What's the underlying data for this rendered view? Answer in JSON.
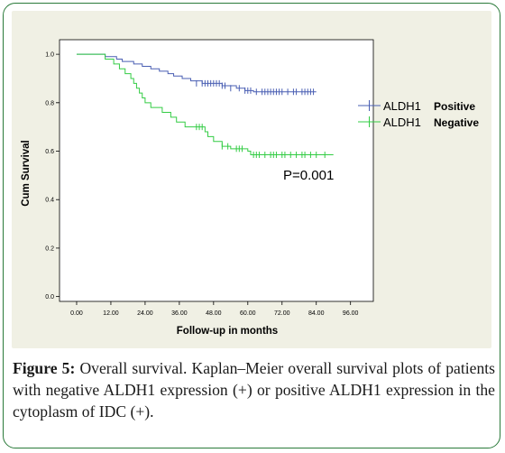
{
  "caption": {
    "label": "Figure 5:",
    "text": " Overall survival. Kaplan–Meier overall survival plots of patients with negative ALDH1 expression (+) or positive ALDH1 expression in the cytoplasm of IDC (+)."
  },
  "chart_data": {
    "type": "line",
    "title": "",
    "xlabel": "Follow-up in months",
    "ylabel": "Cum Survival",
    "xlim": [
      -6,
      104
    ],
    "ylim": [
      -0.02,
      1.06
    ],
    "x_ticks": [
      0,
      12,
      24,
      36,
      48,
      60,
      72,
      84,
      96
    ],
    "x_tick_labels": [
      "0.00",
      "12.00",
      "24.00",
      "36.00",
      "48.00",
      "60.00",
      "72.00",
      "84.00",
      "96.00"
    ],
    "y_ticks": [
      0,
      0.2,
      0.4,
      0.6,
      0.8,
      1.0
    ],
    "y_tick_labels": [
      "0.0",
      "0.2",
      "0.4",
      "0.6",
      "0.8",
      "1.0"
    ],
    "annotation": "P=0.001",
    "legend_position": "right",
    "series": [
      {
        "name": "ALDH1",
        "legend_suffix": "Positive",
        "color": "#4a5fb3",
        "steps": [
          [
            0,
            1.0
          ],
          [
            10,
            0.99
          ],
          [
            14,
            0.98
          ],
          [
            16,
            0.97
          ],
          [
            20,
            0.96
          ],
          [
            23,
            0.95
          ],
          [
            26,
            0.94
          ],
          [
            29,
            0.93
          ],
          [
            32,
            0.92
          ],
          [
            34,
            0.91
          ],
          [
            37,
            0.9
          ],
          [
            40,
            0.89
          ],
          [
            44,
            0.88
          ],
          [
            51,
            0.87
          ],
          [
            56,
            0.86
          ],
          [
            59,
            0.85
          ],
          [
            62,
            0.845
          ],
          [
            84,
            0.845
          ]
        ],
        "censored": [
          [
            42,
            0.88
          ],
          [
            44,
            0.88
          ],
          [
            45,
            0.88
          ],
          [
            46,
            0.88
          ],
          [
            47,
            0.88
          ],
          [
            48,
            0.88
          ],
          [
            49,
            0.88
          ],
          [
            50,
            0.88
          ],
          [
            51,
            0.87
          ],
          [
            52,
            0.87
          ],
          [
            54,
            0.86
          ],
          [
            57,
            0.86
          ],
          [
            59,
            0.85
          ],
          [
            60,
            0.85
          ],
          [
            61,
            0.85
          ],
          [
            63,
            0.845
          ],
          [
            65,
            0.845
          ],
          [
            66,
            0.845
          ],
          [
            67,
            0.845
          ],
          [
            68,
            0.845
          ],
          [
            69,
            0.845
          ],
          [
            70,
            0.845
          ],
          [
            71,
            0.845
          ],
          [
            72,
            0.845
          ],
          [
            74,
            0.845
          ],
          [
            76,
            0.845
          ],
          [
            77,
            0.845
          ],
          [
            79,
            0.845
          ],
          [
            80,
            0.845
          ],
          [
            81,
            0.845
          ],
          [
            82,
            0.845
          ],
          [
            83,
            0.845
          ]
        ]
      },
      {
        "name": "ALDH1",
        "legend_suffix": "Negative",
        "color": "#33cc44",
        "steps": [
          [
            0,
            1.0
          ],
          [
            10,
            0.98
          ],
          [
            13,
            0.96
          ],
          [
            15,
            0.94
          ],
          [
            17,
            0.92
          ],
          [
            19,
            0.9
          ],
          [
            20,
            0.88
          ],
          [
            21,
            0.86
          ],
          [
            22,
            0.84
          ],
          [
            23,
            0.82
          ],
          [
            24,
            0.8
          ],
          [
            26,
            0.78
          ],
          [
            30,
            0.76
          ],
          [
            33,
            0.74
          ],
          [
            35,
            0.72
          ],
          [
            38,
            0.7
          ],
          [
            45,
            0.68
          ],
          [
            46,
            0.66
          ],
          [
            48,
            0.64
          ],
          [
            51,
            0.62
          ],
          [
            54,
            0.61
          ],
          [
            60,
            0.6
          ],
          [
            61,
            0.585
          ],
          [
            90,
            0.585
          ]
        ],
        "censored": [
          [
            42,
            0.7
          ],
          [
            43,
            0.7
          ],
          [
            44,
            0.7
          ],
          [
            51,
            0.62
          ],
          [
            53,
            0.62
          ],
          [
            56,
            0.61
          ],
          [
            57,
            0.61
          ],
          [
            58,
            0.61
          ],
          [
            62,
            0.585
          ],
          [
            63,
            0.585
          ],
          [
            64,
            0.585
          ],
          [
            66,
            0.585
          ],
          [
            68,
            0.585
          ],
          [
            69,
            0.585
          ],
          [
            70,
            0.585
          ],
          [
            72,
            0.585
          ],
          [
            73,
            0.585
          ],
          [
            75,
            0.585
          ],
          [
            77,
            0.585
          ],
          [
            79,
            0.585
          ],
          [
            80,
            0.585
          ],
          [
            82,
            0.585
          ],
          [
            84,
            0.585
          ],
          [
            87,
            0.585
          ]
        ]
      }
    ]
  }
}
